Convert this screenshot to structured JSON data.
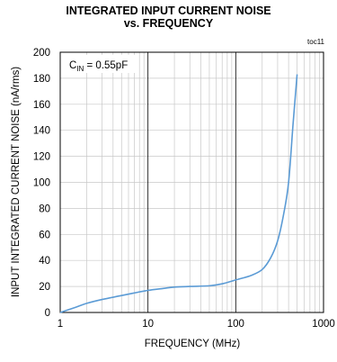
{
  "chart_data": {
    "type": "line",
    "title": "INTEGRATED INPUT CURRENT NOISE",
    "subtitle": "vs. FREQUENCY",
    "tag": "toc11",
    "annotation": {
      "main": "C",
      "sub": "IN",
      "rest": " = 0.55pF"
    },
    "xlabel": "FREQUENCY (MHz)",
    "ylabel": "INPUT INTEGRATED CURRENT NOISE (nA/rms)",
    "xscale": "log",
    "xlim": [
      1,
      1000
    ],
    "ylim": [
      0,
      200
    ],
    "xticks": [
      1,
      10,
      100,
      1000
    ],
    "xtick_labels": [
      "1",
      "10",
      "100",
      "1000"
    ],
    "yticks": [
      0,
      20,
      40,
      60,
      80,
      100,
      120,
      140,
      160,
      180,
      200
    ],
    "ytick_labels": [
      "0",
      "20",
      "40",
      "60",
      "80",
      "100",
      "120",
      "140",
      "160",
      "180",
      "200"
    ],
    "grid": true,
    "line_color": "#5b9bd5",
    "series": [
      {
        "x": [
          1,
          1.5,
          2,
          3,
          5,
          7,
          10,
          15,
          20,
          30,
          50,
          70,
          100,
          150,
          200,
          250,
          300,
          350,
          400,
          450,
          500
        ],
        "y": [
          0,
          4,
          7,
          10,
          13,
          15,
          17,
          18.5,
          19.5,
          20,
          20.5,
          22,
          25,
          28.5,
          33,
          42,
          55,
          75,
          100,
          145,
          183
        ]
      }
    ]
  }
}
